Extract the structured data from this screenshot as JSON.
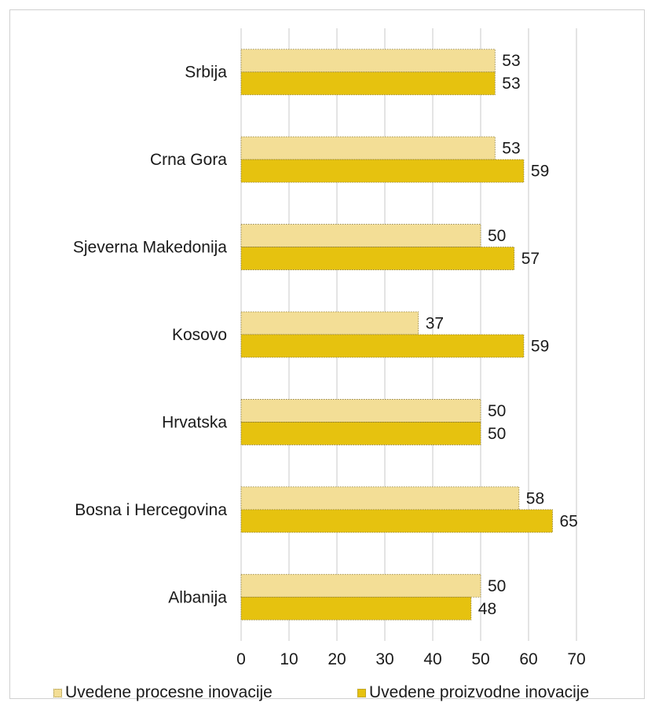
{
  "chart_data": {
    "type": "bar",
    "orientation": "horizontal",
    "categories": [
      "Srbija",
      "Crna Gora",
      "Sjeverna Makedonija",
      "Kosovo",
      "Hrvatska",
      "Bosna i Hercegovina",
      "Albanija"
    ],
    "series": [
      {
        "name": "Uvedene procesne inovacije",
        "values": [
          53,
          53,
          50,
          37,
          50,
          58,
          50
        ],
        "color": "#f3de96"
      },
      {
        "name": "Uvedene proizvodne inovacije",
        "values": [
          53,
          59,
          57,
          59,
          50,
          65,
          48
        ],
        "color": "#e6c20f"
      }
    ],
    "xlim": [
      0,
      70
    ],
    "x_ticks": [
      "0",
      "10",
      "20",
      "30",
      "40",
      "50",
      "60",
      "70"
    ],
    "grid": true,
    "legend_position": "bottom",
    "data_labels": true
  }
}
